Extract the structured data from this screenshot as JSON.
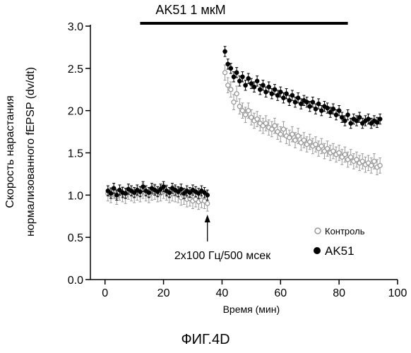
{
  "figure_caption": "ФИГ.4D",
  "chart_data": {
    "type": "scatter",
    "xlabel": "Время (мин)",
    "ylabel_line1": "Скорость нарастания",
    "ylabel_line2": "нормализованного  fEPSP (dv/dt)",
    "xlim": [
      -5,
      100
    ],
    "ylim": [
      0.0,
      3.0
    ],
    "x_ticks": [
      0,
      20,
      40,
      60,
      80,
      100
    ],
    "y_ticks": [
      0.0,
      0.5,
      1.0,
      1.5,
      2.0,
      2.5,
      3.0
    ],
    "x_tick_labels": [
      "0",
      "20",
      "40",
      "60",
      "80",
      "100"
    ],
    "y_tick_labels": [
      "0.0",
      "0.5",
      "1.0",
      "1.5",
      "2.0",
      "2.5",
      "3.0"
    ],
    "drug_bar": {
      "label": "AK51 1 мкМ",
      "x_start": 12,
      "x_end": 83
    },
    "stimulus": {
      "label": "2x100 Гц/500 мсек",
      "x": 35
    },
    "legend": {
      "position": "right",
      "entries": [
        "Контроль",
        "AK51"
      ]
    },
    "series": [
      {
        "name": "Контроль",
        "marker": "open-circle",
        "color": "#9a9a9a",
        "x": [
          1,
          2,
          3,
          4,
          5,
          6,
          7,
          8,
          9,
          10,
          11,
          12,
          13,
          14,
          15,
          16,
          17,
          18,
          19,
          20,
          21,
          22,
          23,
          24,
          25,
          26,
          27,
          28,
          29,
          30,
          31,
          32,
          33,
          34,
          35,
          41,
          42,
          43,
          44,
          45,
          46,
          47,
          48,
          49,
          50,
          51,
          52,
          53,
          54,
          55,
          56,
          57,
          58,
          59,
          60,
          61,
          62,
          63,
          64,
          65,
          66,
          67,
          68,
          69,
          70,
          71,
          72,
          73,
          74,
          75,
          76,
          77,
          78,
          79,
          80,
          81,
          82,
          83,
          84,
          85,
          86,
          87,
          88,
          89,
          90,
          91,
          92,
          93,
          94
        ],
        "y": [
          1.02,
          1.0,
          1.05,
          0.98,
          1.03,
          1.01,
          0.99,
          1.04,
          1.02,
          1.0,
          1.03,
          1.01,
          1.05,
          1.02,
          1.0,
          1.03,
          1.04,
          1.01,
          1.02,
          1.05,
          1.03,
          1.0,
          1.02,
          1.01,
          1.0,
          0.97,
          0.98,
          0.95,
          0.96,
          0.93,
          0.95,
          0.92,
          0.94,
          0.93,
          0.9,
          2.45,
          2.3,
          2.25,
          2.1,
          2.2,
          2.05,
          2.0,
          1.95,
          2.0,
          1.92,
          1.88,
          1.9,
          1.85,
          1.82,
          1.85,
          1.8,
          1.78,
          1.82,
          1.75,
          1.72,
          1.78,
          1.7,
          1.68,
          1.72,
          1.65,
          1.7,
          1.62,
          1.65,
          1.6,
          1.63,
          1.58,
          1.6,
          1.55,
          1.58,
          1.52,
          1.55,
          1.5,
          1.52,
          1.48,
          1.5,
          1.45,
          1.48,
          1.42,
          1.45,
          1.4,
          1.42,
          1.38,
          1.4,
          1.36,
          1.38,
          1.35,
          1.4,
          1.33,
          1.35
        ],
        "error": 0.09
      },
      {
        "name": "AK51",
        "marker": "filled-circle",
        "color": "#000000",
        "x": [
          1,
          2,
          3,
          4,
          5,
          6,
          7,
          8,
          9,
          10,
          11,
          12,
          13,
          14,
          15,
          16,
          17,
          18,
          19,
          20,
          21,
          22,
          23,
          24,
          25,
          26,
          27,
          28,
          29,
          30,
          31,
          32,
          33,
          34,
          35,
          41,
          42,
          43,
          44,
          45,
          46,
          47,
          48,
          49,
          50,
          51,
          52,
          53,
          54,
          55,
          56,
          57,
          58,
          59,
          60,
          61,
          62,
          63,
          64,
          65,
          66,
          67,
          68,
          69,
          70,
          71,
          72,
          73,
          74,
          75,
          76,
          77,
          78,
          79,
          80,
          81,
          82,
          83,
          84,
          85,
          86,
          87,
          88,
          89,
          90,
          91,
          92,
          93,
          94
        ],
        "y": [
          1.05,
          1.02,
          1.08,
          1.0,
          1.06,
          1.03,
          1.02,
          1.07,
          1.05,
          1.03,
          1.06,
          1.04,
          1.1,
          1.05,
          1.03,
          1.08,
          1.06,
          1.04,
          1.07,
          1.1,
          1.05,
          1.03,
          1.08,
          1.06,
          1.04,
          1.07,
          1.02,
          1.05,
          1.03,
          1.06,
          1.04,
          1.02,
          1.05,
          1.03,
          1.0,
          2.7,
          2.55,
          2.5,
          2.4,
          2.45,
          2.35,
          2.4,
          2.3,
          2.38,
          2.32,
          2.28,
          2.35,
          2.25,
          2.3,
          2.22,
          2.28,
          2.2,
          2.25,
          2.18,
          2.22,
          2.15,
          2.2,
          2.12,
          2.18,
          2.1,
          2.15,
          2.08,
          2.12,
          2.1,
          2.05,
          2.1,
          2.02,
          2.08,
          2.0,
          2.05,
          2.03,
          1.98,
          2.02,
          1.95,
          2.0,
          1.92,
          1.88,
          1.95,
          1.85,
          1.9,
          1.88,
          1.92,
          1.85,
          1.88,
          1.9,
          1.85,
          1.88,
          1.86,
          1.9
        ],
        "error": 0.06
      }
    ]
  }
}
